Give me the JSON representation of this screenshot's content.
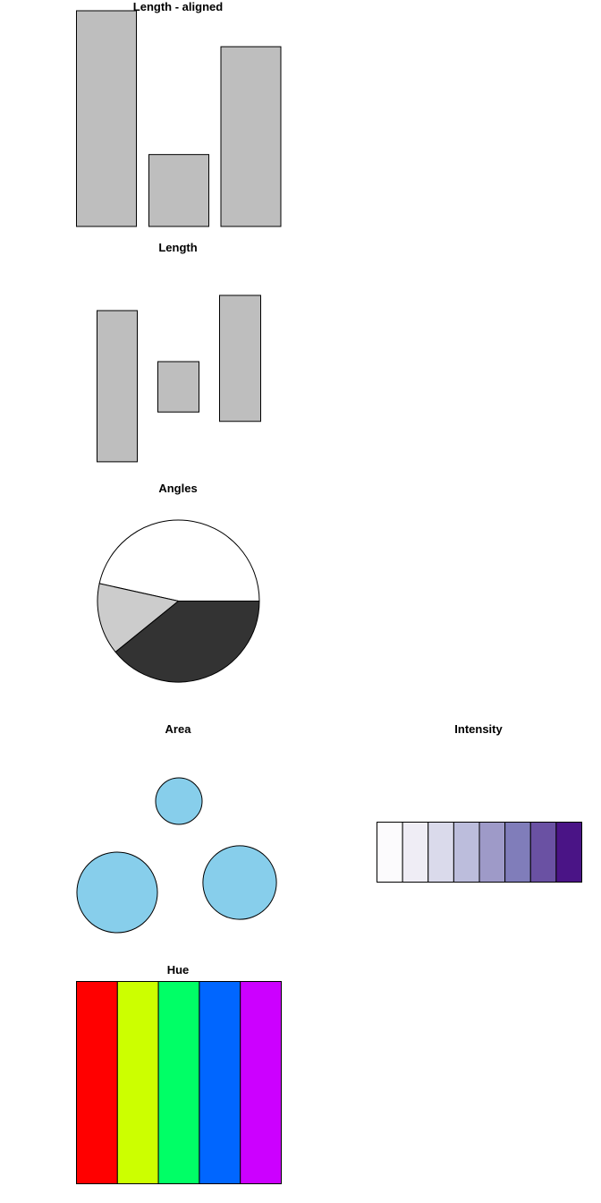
{
  "chart_data": [
    {
      "type": "bar",
      "title": "Length - aligned",
      "values": [
        6,
        2,
        5
      ],
      "ylim": [
        0,
        6
      ],
      "fill": "#bebebe",
      "baseline": "aligned"
    },
    {
      "type": "bar",
      "title": "Length",
      "values": [
        3,
        1,
        2.5
      ],
      "fill": "#bebebe",
      "baseline": "unaligned"
    },
    {
      "type": "pie",
      "title": "Angles",
      "slices": [
        {
          "value": 0.4653,
          "color": "#ffffff"
        },
        {
          "value": 0.143,
          "color": "#cccccc"
        },
        {
          "value": 0.3917,
          "color": "#333333"
        }
      ]
    },
    {
      "type": "scatter",
      "title": "Area",
      "marker": "circle",
      "fill": "#87ceeb",
      "sizes": [
        1,
        3,
        2.5
      ]
    },
    {
      "type": "heatmap",
      "title": "Intensity",
      "colors": [
        "#fcfbfd",
        "#efedf5",
        "#dadaeb",
        "#bcbddc",
        "#9e9ac8",
        "#807dba",
        "#6a51a3",
        "#4a1486"
      ]
    },
    {
      "type": "heatmap",
      "title": "Hue",
      "colors": [
        "#ff0000",
        "#ccff00",
        "#00ff66",
        "#0066ff",
        "#cc00ff"
      ]
    }
  ]
}
